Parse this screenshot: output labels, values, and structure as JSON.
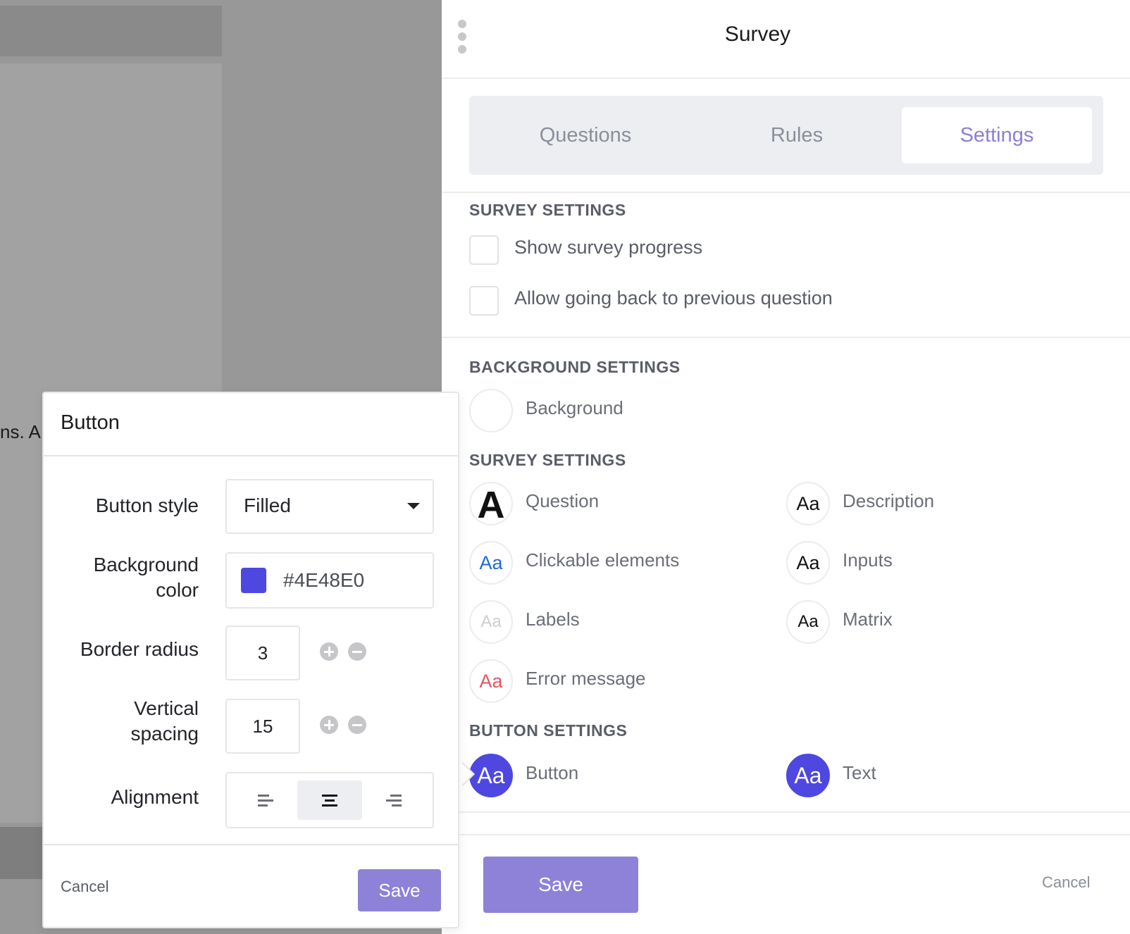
{
  "background": {
    "partial_text": "ns. A"
  },
  "panel": {
    "title": "Survey",
    "tabs": [
      {
        "label": "Questions",
        "active": false
      },
      {
        "label": "Rules",
        "active": false
      },
      {
        "label": "Settings",
        "active": true
      }
    ],
    "survey_settings": {
      "title": "SURVEY SETTINGS",
      "checkboxes": [
        {
          "label": "Show survey progress",
          "checked": false
        },
        {
          "label": "Allow going back to previous question",
          "checked": false
        }
      ]
    },
    "background_settings": {
      "title": "BACKGROUND SETTINGS",
      "background_label": "Background"
    },
    "text_settings": {
      "title": "SURVEY SETTINGS",
      "items": [
        {
          "glyph": "A",
          "label": "Question"
        },
        {
          "glyph": "Aa",
          "label": "Description"
        },
        {
          "glyph": "Aa",
          "label": "Clickable elements"
        },
        {
          "glyph": "Aa",
          "label": "Inputs"
        },
        {
          "glyph": "Aa",
          "label": "Labels"
        },
        {
          "glyph": "Aa",
          "label": "Matrix"
        },
        {
          "glyph": "Aa",
          "label": "Error message"
        }
      ]
    },
    "button_settings": {
      "title": "BUTTON SETTINGS",
      "items": [
        {
          "glyph": "Aa",
          "label": "Button"
        },
        {
          "glyph": "Aa",
          "label": "Text"
        }
      ]
    },
    "save_label": "Save",
    "cancel_label": "Cancel"
  },
  "popover": {
    "title": "Button",
    "button_style": {
      "label": "Button style",
      "value": "Filled"
    },
    "background_color": {
      "label_line1": "Background",
      "label_line2": "color",
      "value": "#4E48E0"
    },
    "border_radius": {
      "label": "Border radius",
      "value": "3"
    },
    "vertical_spacing": {
      "label_line1": "Vertical",
      "label_line2": "spacing",
      "value": "15"
    },
    "alignment": {
      "label": "Alignment",
      "selected": "center"
    },
    "cancel_label": "Cancel",
    "save_label": "Save"
  },
  "colors": {
    "accent": "#8d82d8",
    "button_color": "#4E48E0",
    "active_tab_text": "#8b80d6"
  },
  "icons": [
    "kebab-menu-icon",
    "caret-down-icon",
    "plus-icon",
    "minus-icon",
    "align-left-icon",
    "align-center-icon",
    "align-right-icon"
  ]
}
